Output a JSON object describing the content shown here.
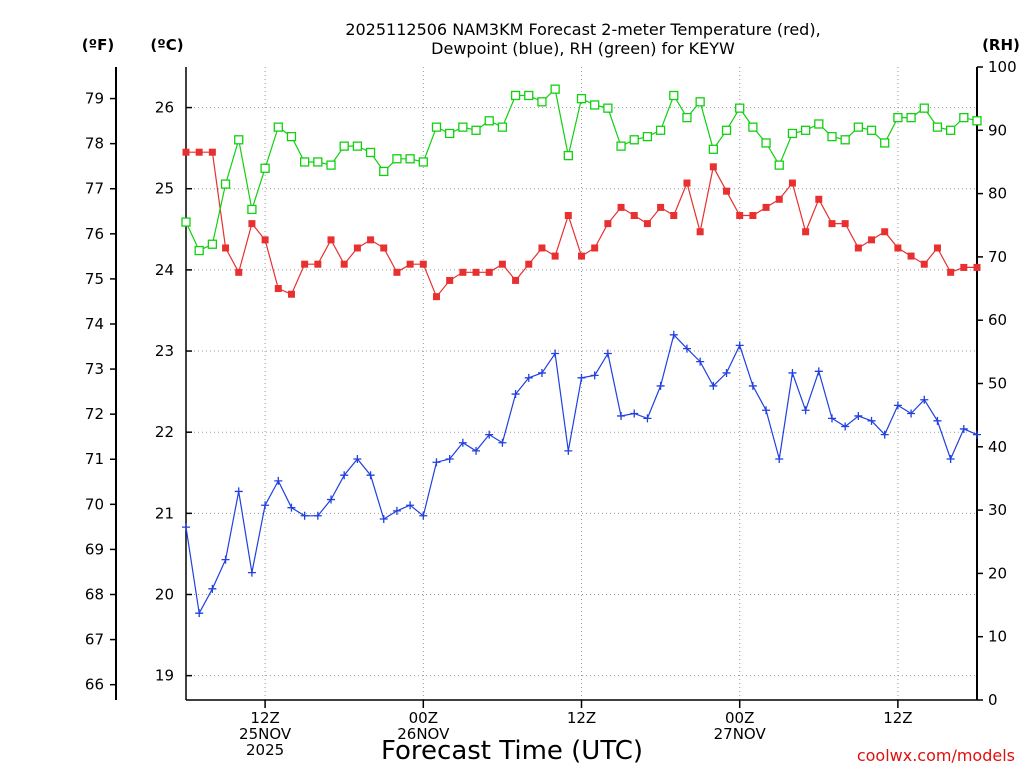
{
  "chart_data": {
    "type": "line",
    "title": "2025112506 NAM3KM Forecast 2-meter Temperature (red), Dewpoint (blue), RH (green) for KEYW",
    "xlabel": "Forecast Time (UTC)",
    "credit": "coolwx.com/models",
    "left_unit_f": "(ºF)",
    "left_unit_c": "(ºC)",
    "right_unit": "(RH)",
    "time_step_hours": 1,
    "f_ticks": [
      "66",
      "67",
      "68",
      "69",
      "70",
      "71",
      "72",
      "73",
      "74",
      "75",
      "76",
      "77",
      "78",
      "79"
    ],
    "c_ticks": [
      "19",
      "20",
      "21",
      "22",
      "23",
      "24",
      "25",
      "26"
    ],
    "rh_ticks": [
      "0",
      "10",
      "20",
      "30",
      "40",
      "50",
      "60",
      "70",
      "80",
      "90",
      "100"
    ],
    "x_ticks": [
      {
        "hour": 6,
        "lines": [
          "12Z",
          "25NOV",
          "2025"
        ]
      },
      {
        "hour": 18,
        "lines": [
          "00Z",
          "26NOV"
        ]
      },
      {
        "hour": 30,
        "lines": [
          "12Z"
        ]
      },
      {
        "hour": 42,
        "lines": [
          "00Z",
          "27NOV"
        ]
      },
      {
        "hour": 54,
        "lines": [
          "12Z"
        ]
      }
    ],
    "ylim_c": [
      18.7,
      26.5
    ],
    "ylim_f": [
      65.66,
      79.7
    ],
    "ylim_rh": [
      0,
      100
    ],
    "xlim_hours": [
      0,
      60
    ],
    "grid": true,
    "colors": {
      "temperature": "#e83030",
      "dewpoint": "#2040e0",
      "rh": "#10d010"
    },
    "series": [
      {
        "name": "Temperature (red)",
        "axis": "C",
        "values": [
          25.45,
          25.45,
          25.45,
          24.27,
          23.97,
          24.57,
          24.37,
          23.77,
          23.7,
          24.07,
          24.07,
          24.37,
          24.07,
          24.27,
          24.37,
          24.27,
          23.97,
          24.07,
          24.07,
          23.67,
          23.87,
          23.97,
          23.97,
          23.97,
          24.07,
          23.87,
          24.07,
          24.27,
          24.17,
          24.67,
          24.17,
          24.27,
          24.57,
          24.77,
          24.67,
          24.57,
          24.77,
          24.67,
          25.07,
          24.47,
          25.27,
          24.97,
          24.67,
          24.67,
          24.77,
          24.87,
          25.07,
          24.47,
          24.87,
          24.57,
          24.57,
          24.27,
          24.37,
          24.47,
          24.27,
          24.17,
          24.07,
          24.27,
          23.97,
          24.03,
          24.03
        ]
      },
      {
        "name": "Dewpoint (blue)",
        "axis": "C",
        "values": [
          20.83,
          19.77,
          20.07,
          20.43,
          21.27,
          20.27,
          21.1,
          21.4,
          21.07,
          20.97,
          20.97,
          21.17,
          21.47,
          21.67,
          21.47,
          20.93,
          21.03,
          21.1,
          20.97,
          21.63,
          21.67,
          21.87,
          21.77,
          21.97,
          21.87,
          22.47,
          22.67,
          22.73,
          22.97,
          21.77,
          22.67,
          22.7,
          22.97,
          22.2,
          22.23,
          22.17,
          22.57,
          23.2,
          23.03,
          22.87,
          22.57,
          22.73,
          23.07,
          22.57,
          22.27,
          21.67,
          22.73,
          22.27,
          22.75,
          22.17,
          22.07,
          22.2,
          22.14,
          21.97,
          22.33,
          22.23,
          22.4,
          22.14,
          21.67,
          22.04,
          21.97
        ]
      },
      {
        "name": "RH (green)",
        "axis": "RH",
        "values": [
          75.5,
          71,
          72,
          81.5,
          88.5,
          77.5,
          84,
          90.5,
          89,
          85,
          85,
          84.5,
          87.5,
          87.5,
          86.5,
          83.5,
          85.5,
          85.5,
          85,
          90.5,
          89.5,
          90.5,
          90,
          91.5,
          90.5,
          95.5,
          95.5,
          94.5,
          96.5,
          86,
          95,
          94,
          93.5,
          87.5,
          88.5,
          89,
          90,
          95.5,
          92,
          94.5,
          87,
          90,
          93.5,
          90.5,
          88,
          84.5,
          89.5,
          90,
          91,
          89,
          88.5,
          90.5,
          90,
          88,
          92,
          92,
          93.5,
          90.5,
          90,
          92,
          91.5
        ]
      }
    ]
  }
}
